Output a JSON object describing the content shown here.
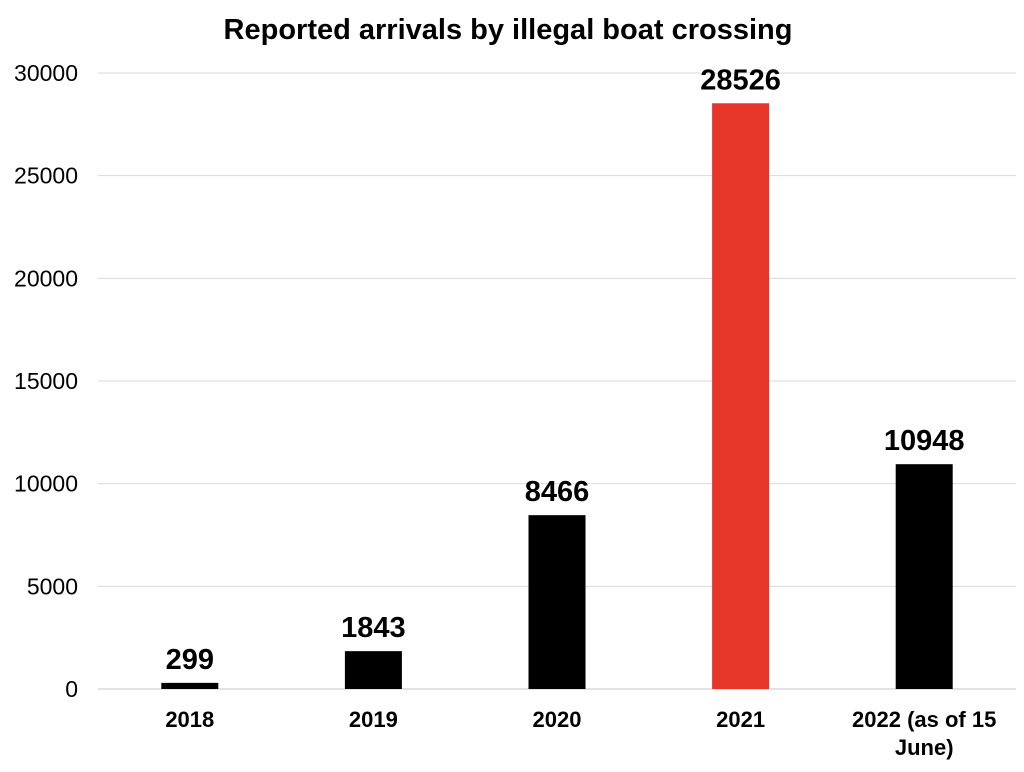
{
  "chart_data": {
    "type": "bar",
    "title": "Reported arrivals by illegal boat crossing",
    "xlabel": "",
    "ylabel": "",
    "categories": [
      "2018",
      "2019",
      "2020",
      "2021",
      "2022 (as of 15 June)"
    ],
    "values": [
      299,
      1843,
      8466,
      28526,
      10948
    ],
    "colors": [
      "#000000",
      "#000000",
      "#000000",
      "#e8352a",
      "#000000"
    ],
    "ylim": [
      0,
      30000
    ],
    "yticks": [
      0,
      5000,
      10000,
      15000,
      20000,
      25000,
      30000
    ],
    "grid": true,
    "legend": "none"
  }
}
